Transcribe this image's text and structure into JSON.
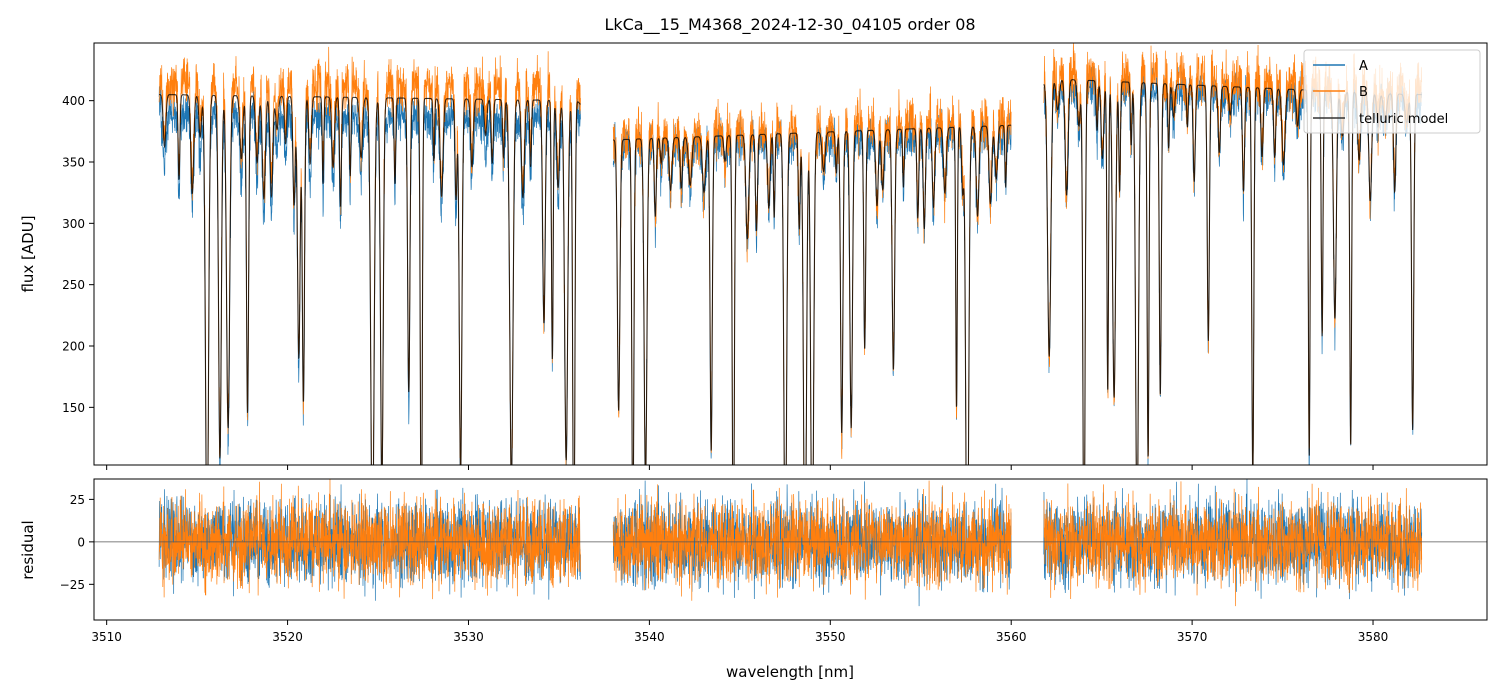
{
  "chart_data": {
    "type": "line",
    "title": "LkCa__15_M4368_2024-12-30_04105  order 08",
    "xlabel": "wavelength [nm]",
    "colors": {
      "A": "#1f77b4",
      "B": "#ff7f0e",
      "model": "#000000"
    },
    "x_ticks": [
      "3510",
      "3520",
      "3530",
      "3540",
      "3550",
      "3560",
      "3570",
      "3580"
    ],
    "x_tick_values": [
      3510,
      3520,
      3530,
      3540,
      3550,
      3560,
      3570,
      3580
    ],
    "xlim": [
      3509.3,
      3586.3
    ],
    "segments": [
      [
        3512.9,
        3536.2
      ],
      [
        3538.0,
        3560.0
      ],
      [
        3561.8,
        3582.7
      ]
    ],
    "panels": [
      {
        "name": "flux",
        "ylabel": "flux [ADU]",
        "ylim": [
          103,
          447
        ],
        "y_ticks": [
          "150",
          "200",
          "250",
          "300",
          "350",
          "400"
        ],
        "y_tick_values": [
          150,
          200,
          250,
          300,
          350,
          400
        ],
        "legend": {
          "location": "top-right",
          "entries": [
            "A",
            "B",
            "telluric model"
          ]
        },
        "series": [
          {
            "name": "A",
            "approx_continuum": [
              [
                3513,
                388
              ],
              [
                3536,
                385
              ],
              [
                3538,
                362
              ],
              [
                3560,
                375
              ],
              [
                3562,
                412
              ],
              [
                3582,
                400
              ]
            ]
          },
          {
            "name": "B",
            "approx_continuum": [
              [
                3513,
                415
              ],
              [
                3536,
                410
              ],
              [
                3538,
                370
              ],
              [
                3560,
                385
              ],
              [
                3562,
                425
              ],
              [
                3582,
                410
              ]
            ]
          },
          {
            "name": "telluric model",
            "approx_continuum": [
              [
                3513,
                405
              ],
              [
                3536,
                400
              ],
              [
                3538,
                368
              ],
              [
                3560,
                380
              ],
              [
                3562,
                418
              ],
              [
                3582,
                405
              ]
            ]
          }
        ]
      },
      {
        "name": "residual",
        "ylabel": "residual",
        "ylim": [
          -46,
          37
        ],
        "y_ticks": [
          "25",
          "0",
          "−25"
        ],
        "y_tick_values": [
          25,
          0,
          -25
        ],
        "zero_line": 0,
        "series": [
          {
            "name": "A",
            "approx_scatter": 15
          },
          {
            "name": "B",
            "approx_scatter": 15
          }
        ]
      }
    ]
  }
}
